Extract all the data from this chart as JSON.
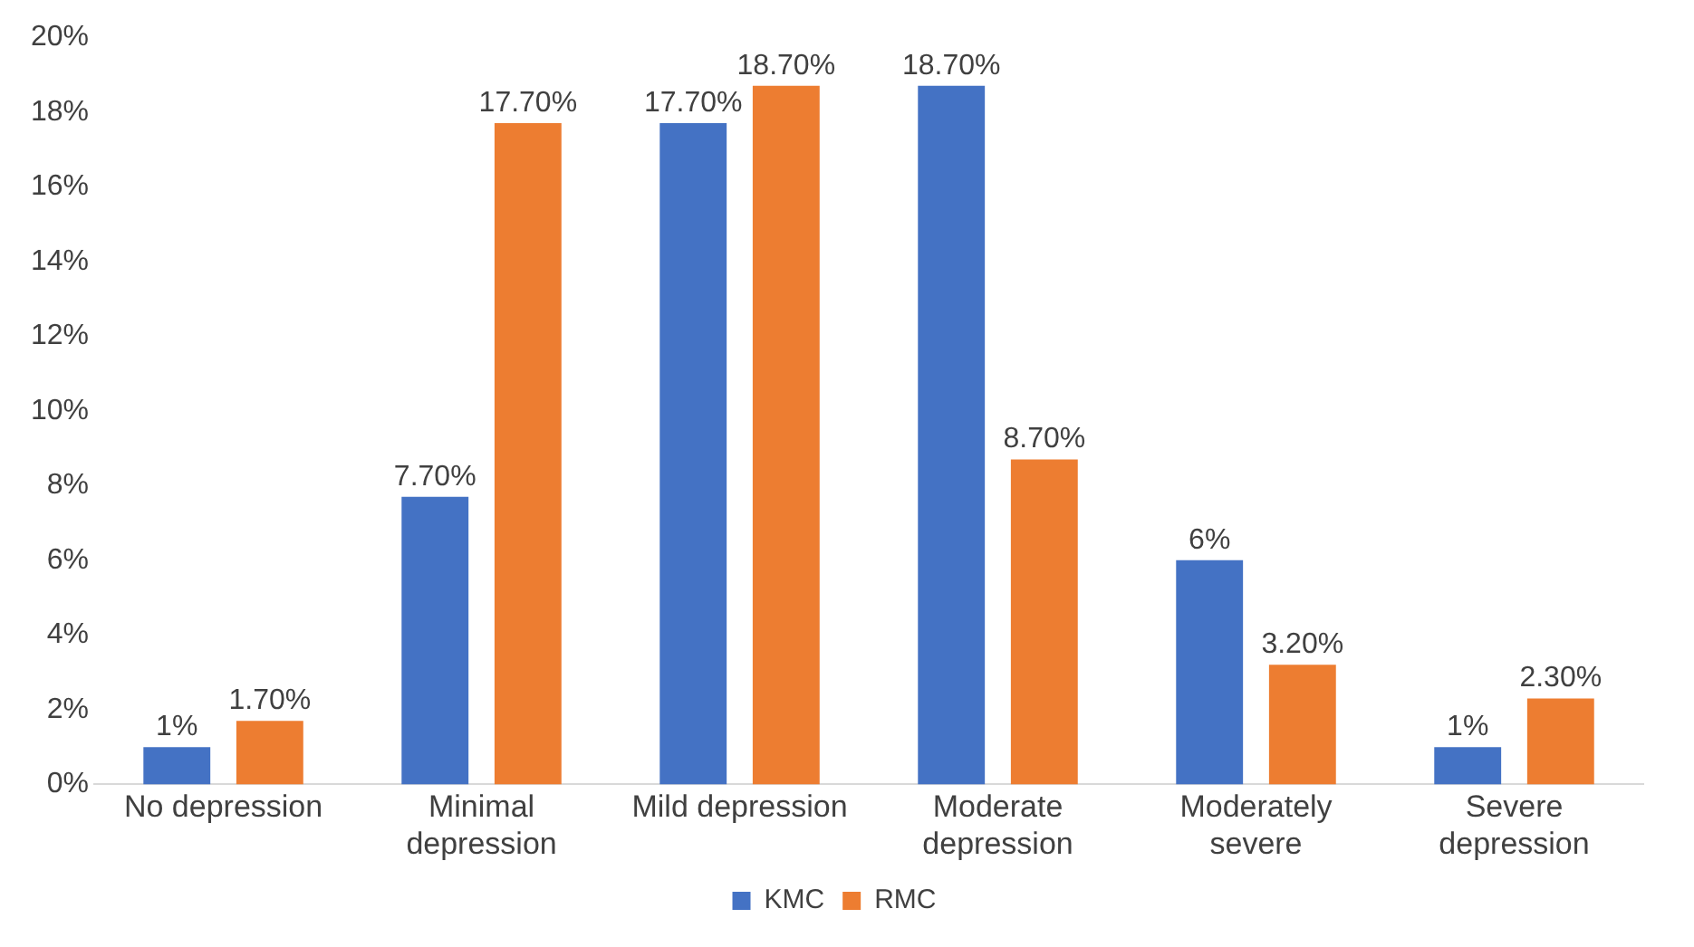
{
  "chart_data": {
    "type": "bar",
    "categories": [
      "No depression",
      "Minimal depression",
      "Mild depression",
      "Moderate depression",
      "Moderately severe",
      "Severe depression"
    ],
    "series": [
      {
        "name": "KMC",
        "color": "#4472c4",
        "values": [
          1,
          7.7,
          17.7,
          18.7,
          6,
          1
        ],
        "value_labels": [
          "1%",
          "7.70%",
          "17.70%",
          "18.70%",
          "6%",
          "1%"
        ]
      },
      {
        "name": "RMC",
        "color": "#ed7d31",
        "values": [
          1.7,
          17.7,
          18.7,
          8.7,
          3.2,
          2.3
        ],
        "value_labels": [
          "1.70%",
          "17.70%",
          "18.70%",
          "8.70%",
          "3.20%",
          "2.30%"
        ]
      }
    ],
    "ylim": [
      0,
      20
    ],
    "yticks": [
      {
        "value": 0,
        "label": "0%"
      },
      {
        "value": 2,
        "label": "2%"
      },
      {
        "value": 4,
        "label": "4%"
      },
      {
        "value": 6,
        "label": "6%"
      },
      {
        "value": 8,
        "label": "8%"
      },
      {
        "value": 10,
        "label": "10%"
      },
      {
        "value": 12,
        "label": "12%"
      },
      {
        "value": 14,
        "label": "14%"
      },
      {
        "value": 16,
        "label": "16%"
      },
      {
        "value": 18,
        "label": "18%"
      },
      {
        "value": 20,
        "label": "20%"
      }
    ],
    "grid": false,
    "legend": "bottom"
  }
}
